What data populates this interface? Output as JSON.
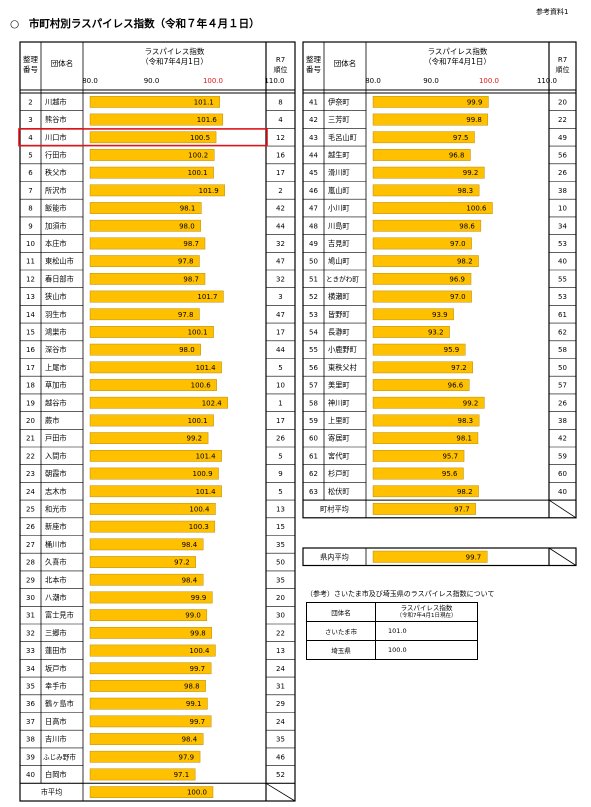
{
  "ref_label": "参考資料1",
  "title_mark": "○",
  "title": "市町村別ラスパイレス指数（令和７年４月１日）",
  "headers": {
    "no_line1": "整理",
    "no_line2": "番号",
    "name": "団体名",
    "index_line1": "ラスパイレス指数",
    "index_line2": "（令和7年4月1日）",
    "rank_line1": "R7",
    "rank_line2": "順位"
  },
  "colors": {
    "bar": "#FFC000",
    "bar_edge": "#A57C00",
    "tick_100": "#E0151B",
    "highlight": "#E0151B"
  },
  "chart_data": [
    {
      "type": "bar",
      "orientation": "horizontal",
      "axis_ticks": [
        "80.0",
        "90.0",
        "100.0",
        "110.0"
      ],
      "xlim": [
        80,
        113
      ],
      "rows": [
        {
          "no": "2",
          "name": "川越市",
          "value": 101.1,
          "label": "101.1",
          "rank": "8"
        },
        {
          "no": "3",
          "name": "熊谷市",
          "value": 101.6,
          "label": "101.6",
          "rank": "4"
        },
        {
          "no": "4",
          "name": "川口市",
          "value": 100.5,
          "label": "100.5",
          "rank": "12",
          "highlight": true
        },
        {
          "no": "5",
          "name": "行田市",
          "value": 100.2,
          "label": "100.2",
          "rank": "16"
        },
        {
          "no": "6",
          "name": "秩父市",
          "value": 100.1,
          "label": "100.1",
          "rank": "17"
        },
        {
          "no": "7",
          "name": "所沢市",
          "value": 101.9,
          "label": "101.9",
          "rank": "2"
        },
        {
          "no": "8",
          "name": "飯能市",
          "value": 98.1,
          "label": "98.1",
          "rank": "42"
        },
        {
          "no": "9",
          "name": "加須市",
          "value": 98.0,
          "label": "98.0",
          "rank": "44"
        },
        {
          "no": "10",
          "name": "本庄市",
          "value": 98.7,
          "label": "98.7",
          "rank": "32"
        },
        {
          "no": "11",
          "name": "東松山市",
          "value": 97.8,
          "label": "97.8",
          "rank": "47"
        },
        {
          "no": "12",
          "name": "春日部市",
          "value": 98.7,
          "label": "98.7",
          "rank": "32"
        },
        {
          "no": "13",
          "name": "狭山市",
          "value": 101.7,
          "label": "101.7",
          "rank": "3"
        },
        {
          "no": "14",
          "name": "羽生市",
          "value": 97.8,
          "label": "97.8",
          "rank": "47"
        },
        {
          "no": "15",
          "name": "鴻巣市",
          "value": 100.1,
          "label": "100.1",
          "rank": "17"
        },
        {
          "no": "16",
          "name": "深谷市",
          "value": 98.0,
          "label": "98.0",
          "rank": "44"
        },
        {
          "no": "17",
          "name": "上尾市",
          "value": 101.4,
          "label": "101.4",
          "rank": "5"
        },
        {
          "no": "18",
          "name": "草加市",
          "value": 100.6,
          "label": "100.6",
          "rank": "10"
        },
        {
          "no": "19",
          "name": "越谷市",
          "value": 102.4,
          "label": "102.4",
          "rank": "1"
        },
        {
          "no": "20",
          "name": "蕨市",
          "value": 100.1,
          "label": "100.1",
          "rank": "17"
        },
        {
          "no": "21",
          "name": "戸田市",
          "value": 99.2,
          "label": "99.2",
          "rank": "26"
        },
        {
          "no": "22",
          "name": "入間市",
          "value": 101.4,
          "label": "101.4",
          "rank": "5"
        },
        {
          "no": "23",
          "name": "朝霞市",
          "value": 100.9,
          "label": "100.9",
          "rank": "9"
        },
        {
          "no": "24",
          "name": "志木市",
          "value": 101.4,
          "label": "101.4",
          "rank": "5"
        },
        {
          "no": "25",
          "name": "和光市",
          "value": 100.4,
          "label": "100.4",
          "rank": "13"
        },
        {
          "no": "26",
          "name": "新座市",
          "value": 100.3,
          "label": "100.3",
          "rank": "15"
        },
        {
          "no": "27",
          "name": "桶川市",
          "value": 98.4,
          "label": "98.4",
          "rank": "35"
        },
        {
          "no": "28",
          "name": "久喜市",
          "value": 97.2,
          "label": "97.2",
          "rank": "50"
        },
        {
          "no": "29",
          "name": "北本市",
          "value": 98.4,
          "label": "98.4",
          "rank": "35"
        },
        {
          "no": "30",
          "name": "八潮市",
          "value": 99.9,
          "label": "99.9",
          "rank": "20"
        },
        {
          "no": "31",
          "name": "富士見市",
          "value": 99.0,
          "label": "99.0",
          "rank": "30"
        },
        {
          "no": "32",
          "name": "三郷市",
          "value": 99.8,
          "label": "99.8",
          "rank": "22"
        },
        {
          "no": "33",
          "name": "蓮田市",
          "value": 100.4,
          "label": "100.4",
          "rank": "13"
        },
        {
          "no": "34",
          "name": "坂戸市",
          "value": 99.7,
          "label": "99.7",
          "rank": "24"
        },
        {
          "no": "35",
          "name": "幸手市",
          "value": 98.8,
          "label": "98.8",
          "rank": "31"
        },
        {
          "no": "36",
          "name": "鶴ヶ島市",
          "value": 99.1,
          "label": "99.1",
          "rank": "29"
        },
        {
          "no": "37",
          "name": "日高市",
          "value": 99.7,
          "label": "99.7",
          "rank": "24"
        },
        {
          "no": "38",
          "name": "吉川市",
          "value": 98.4,
          "label": "98.4",
          "rank": "35"
        },
        {
          "no": "39",
          "name": "ふじみ野市",
          "value": 97.9,
          "label": "97.9",
          "rank": "46"
        },
        {
          "no": "40",
          "name": "白岡市",
          "value": 97.1,
          "label": "97.1",
          "rank": "52"
        }
      ],
      "average": {
        "name": "市平均",
        "value": 100.0,
        "label": "100.0"
      }
    },
    {
      "type": "bar",
      "orientation": "horizontal",
      "axis_ticks": [
        "80.0",
        "90.0",
        "100.0",
        "110.0"
      ],
      "xlim": [
        80,
        113
      ],
      "rows": [
        {
          "no": "41",
          "name": "伊奈町",
          "value": 99.9,
          "label": "99.9",
          "rank": "20"
        },
        {
          "no": "42",
          "name": "三芳町",
          "value": 99.8,
          "label": "99.8",
          "rank": "22"
        },
        {
          "no": "43",
          "name": "毛呂山町",
          "value": 97.5,
          "label": "97.5",
          "rank": "49"
        },
        {
          "no": "44",
          "name": "越生町",
          "value": 96.8,
          "label": "96.8",
          "rank": "56"
        },
        {
          "no": "45",
          "name": "滑川町",
          "value": 99.2,
          "label": "99.2",
          "rank": "26"
        },
        {
          "no": "46",
          "name": "嵐山町",
          "value": 98.3,
          "label": "98.3",
          "rank": "38"
        },
        {
          "no": "47",
          "name": "小川町",
          "value": 100.6,
          "label": "100.6",
          "rank": "10"
        },
        {
          "no": "48",
          "name": "川島町",
          "value": 98.6,
          "label": "98.6",
          "rank": "34"
        },
        {
          "no": "49",
          "name": "吉見町",
          "value": 97.0,
          "label": "97.0",
          "rank": "53"
        },
        {
          "no": "50",
          "name": "鳩山町",
          "value": 98.2,
          "label": "98.2",
          "rank": "40"
        },
        {
          "no": "51",
          "name": "ときがわ町",
          "value": 96.9,
          "label": "96.9",
          "rank": "55"
        },
        {
          "no": "52",
          "name": "横瀬町",
          "value": 97.0,
          "label": "97.0",
          "rank": "53"
        },
        {
          "no": "53",
          "name": "皆野町",
          "value": 93.9,
          "label": "93.9",
          "rank": "61"
        },
        {
          "no": "54",
          "name": "長瀞町",
          "value": 93.2,
          "label": "93.2",
          "rank": "62"
        },
        {
          "no": "55",
          "name": "小鹿野町",
          "value": 95.9,
          "label": "95.9",
          "rank": "58"
        },
        {
          "no": "56",
          "name": "東秩父村",
          "value": 97.2,
          "label": "97.2",
          "rank": "50"
        },
        {
          "no": "57",
          "name": "美里町",
          "value": 96.6,
          "label": "96.6",
          "rank": "57"
        },
        {
          "no": "58",
          "name": "神川町",
          "value": 99.2,
          "label": "99.2",
          "rank": "26"
        },
        {
          "no": "59",
          "name": "上里町",
          "value": 98.3,
          "label": "98.3",
          "rank": "38"
        },
        {
          "no": "60",
          "name": "寄居町",
          "value": 98.1,
          "label": "98.1",
          "rank": "42"
        },
        {
          "no": "61",
          "name": "宮代町",
          "value": 95.7,
          "label": "95.7",
          "rank": "59"
        },
        {
          "no": "62",
          "name": "杉戸町",
          "value": 95.6,
          "label": "95.6",
          "rank": "60"
        },
        {
          "no": "63",
          "name": "松伏町",
          "value": 98.2,
          "label": "98.2",
          "rank": "40"
        }
      ],
      "average": {
        "name": "町村平均",
        "value": 97.7,
        "label": "97.7"
      }
    }
  ],
  "prefecture_average": {
    "name": "県内平均",
    "value": 99.7,
    "label": "99.7"
  },
  "reference": {
    "note": "（参考）さいたま市及び埼玉県のラスパイレス指数について",
    "col1": "団体名",
    "col2_line1": "ラスパイレス指数",
    "col2_line2": "（令和7年4月1日現在）",
    "rows": [
      {
        "name": "さいたま市",
        "value": "101.0"
      },
      {
        "name": "埼玉県",
        "value": "100.0"
      }
    ]
  }
}
